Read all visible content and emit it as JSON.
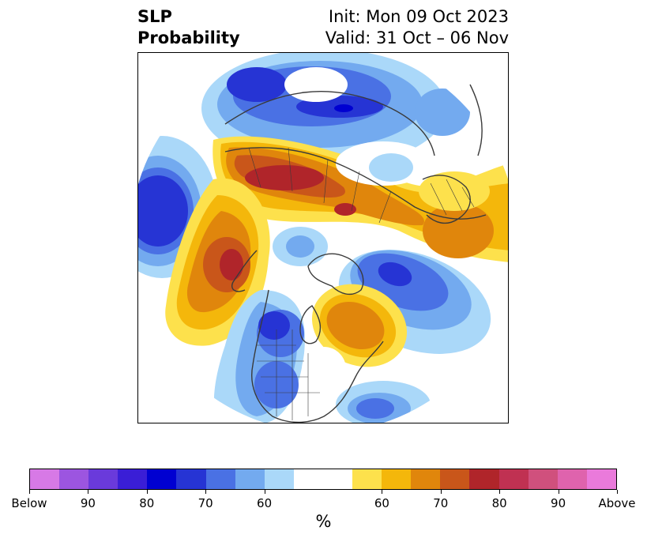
{
  "header": {
    "title_line1": "SLP",
    "title_line2": "Probability",
    "init_text": "Init: Mon 09 Oct 2023",
    "valid_text": "Valid: 31 Oct – 06 Nov"
  },
  "colorbar": {
    "unit_label": "%",
    "colors": [
      "#d779e6",
      "#9c55e0",
      "#6a3adb",
      "#3a1ed6",
      "#0000d1",
      "#2634d4",
      "#4a71e4",
      "#73aaef",
      "#aad8f9",
      "#ffffff",
      "#ffffff",
      "#fde14c",
      "#f4b70b",
      "#e0860c",
      "#c9561a",
      "#b0252a",
      "#c03152",
      "#d0507d",
      "#df63ad",
      "#ea7adb"
    ],
    "tick_labels": [
      "Below",
      "90",
      "80",
      "70",
      "60",
      "60",
      "70",
      "80",
      "90",
      "Above"
    ]
  },
  "map": {
    "projection": "north-polar-stereographic",
    "colors": {
      "blue_light": "#aad8f9",
      "blue_mid": "#73aaef",
      "blue_med": "#4a71e4",
      "blue_strong": "#2634d4",
      "blue_dark": "#0000d1",
      "yellow": "#fde14c",
      "gold": "#f4b70b",
      "orange": "#e0860c",
      "rust": "#c9561a",
      "red": "#b0252a",
      "coast": "#3a3a3a"
    }
  }
}
